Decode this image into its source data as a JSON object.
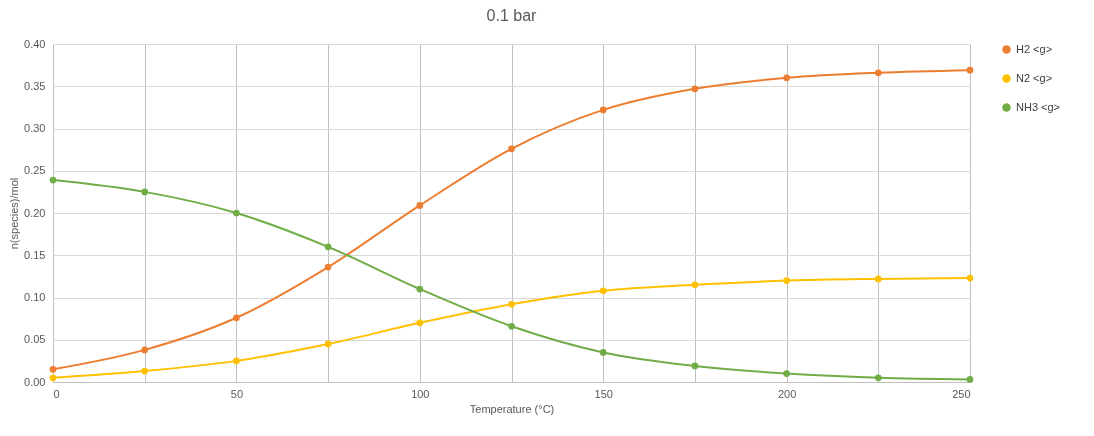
{
  "chart_data": {
    "type": "line",
    "title": "0.1 bar",
    "xlabel": "Temperature (°C)",
    "ylabel": "n(species)/mol",
    "x": [
      0,
      25,
      50,
      75,
      100,
      125,
      150,
      175,
      200,
      225,
      250
    ],
    "series": [
      {
        "name": "H2 <g>",
        "color": "#ed7d31",
        "values": [
          0.015,
          0.038,
          0.076,
          0.136,
          0.209,
          0.276,
          0.322,
          0.347,
          0.36,
          0.366,
          0.369
        ]
      },
      {
        "name": "N2 <g>",
        "color": "#ffc000",
        "values": [
          0.005,
          0.013,
          0.025,
          0.045,
          0.07,
          0.092,
          0.108,
          0.115,
          0.12,
          0.122,
          0.123
        ]
      },
      {
        "name": "NH3 <g>",
        "color": "#70ad47",
        "values": [
          0.239,
          0.225,
          0.2,
          0.16,
          0.11,
          0.066,
          0.035,
          0.019,
          0.01,
          0.005,
          0.003
        ]
      }
    ],
    "xlim": [
      0,
      250
    ],
    "xticks": [
      0,
      {
        "value": 25,
        "label": null
      },
      50,
      {
        "value": 75,
        "label": null
      },
      100,
      {
        "value": 125,
        "label": null
      },
      150,
      {
        "value": 175,
        "label": null
      },
      200,
      {
        "value": 225,
        "label": null
      },
      250
    ],
    "ylim": [
      0,
      0.4
    ],
    "yticks": [
      {
        "value": 0,
        "label": "0.00"
      },
      {
        "value": 0.05,
        "label": "0.05"
      },
      {
        "value": 0.1,
        "label": "0.10"
      },
      {
        "value": 0.15,
        "label": "0.15"
      },
      {
        "value": 0.2,
        "label": "0.20"
      },
      {
        "value": 0.25,
        "label": "0.25"
      },
      {
        "value": 0.3,
        "label": "0.30"
      },
      {
        "value": 0.35,
        "label": "0.35"
      },
      {
        "value": 0.4,
        "label": "0.40"
      }
    ],
    "grid": true,
    "legend": "right",
    "marker": "circle",
    "line_style": "solid"
  }
}
